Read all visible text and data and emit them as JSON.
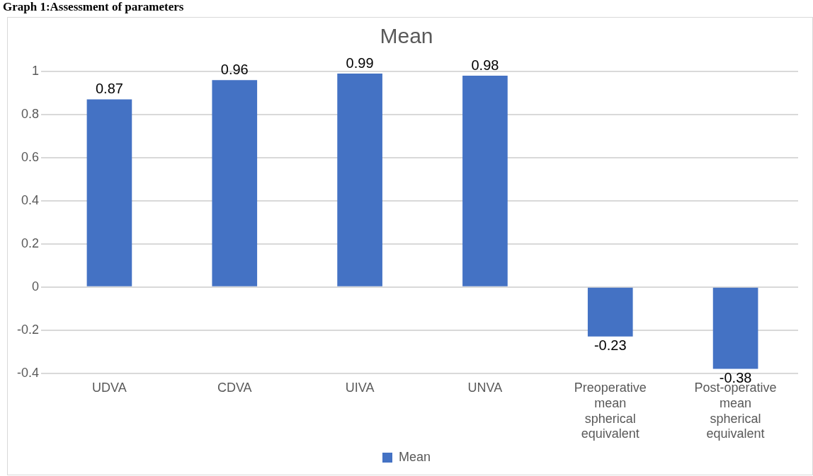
{
  "chart_data": {
    "type": "bar",
    "title": "Mean",
    "annotations": [
      "Graph 1:Assessment of parameters"
    ],
    "categories": [
      "UDVA",
      "CDVA",
      "UIVA",
      "UNVA",
      "Preoperative mean spherical equivalent",
      "Post-operative mean spherical equivalent"
    ],
    "series": [
      {
        "name": "Mean",
        "color": "#4472c4",
        "values": [
          0.87,
          0.96,
          0.99,
          0.98,
          -0.23,
          -0.38
        ]
      }
    ],
    "ylim": [
      -0.4,
      1
    ],
    "yticks": [
      -0.4,
      -0.2,
      0,
      0.2,
      0.4,
      0.6,
      0.8,
      1
    ],
    "grid": "y",
    "legend": "bottom",
    "data_labels": true
  }
}
